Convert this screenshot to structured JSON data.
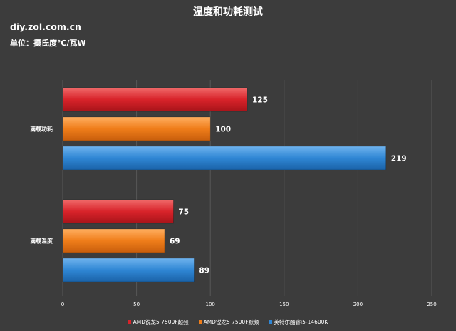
{
  "header": {
    "title": "温度和功耗测试",
    "source": "diy.zol.com.cn",
    "unit": "单位：摄氏度℃/瓦W"
  },
  "chart_data": {
    "type": "bar",
    "orientation": "horizontal",
    "categories": [
      "满载功耗",
      "满载温度"
    ],
    "series": [
      {
        "name": "AMD锐龙5 7500F超频",
        "color": "#d8232a",
        "values": [
          125,
          75
        ]
      },
      {
        "name": "AMD锐龙5 7500F默频",
        "color": "#ef7d1a",
        "values": [
          100,
          69
        ]
      },
      {
        "name": "英特尔酷睿i5-14600K",
        "color": "#2f86d4",
        "values": [
          219,
          89
        ]
      }
    ],
    "xlim": [
      0,
      250
    ],
    "xticks": [
      0,
      50,
      100,
      150,
      200,
      250
    ],
    "grid": true,
    "data_labels": true,
    "legend_position": "bottom"
  }
}
